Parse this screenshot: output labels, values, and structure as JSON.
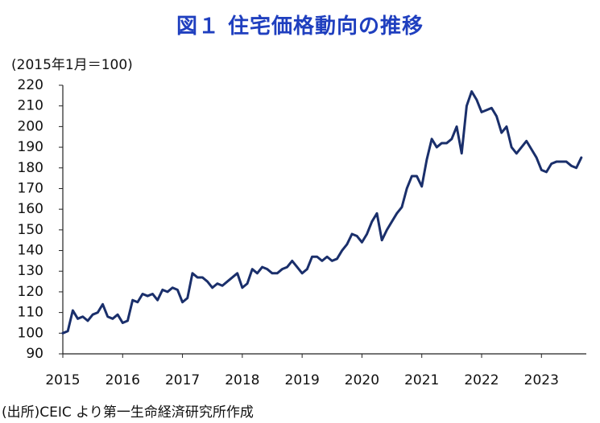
{
  "title": "図１ 住宅価格動向の推移",
  "unit_label": "(2015年1月＝100)",
  "source": "(出所)CEIC より第一生命経済研究所作成",
  "colors": {
    "title": "#1f3fbf",
    "line": "#1a2f6b",
    "axis": "#222222"
  },
  "chart_data": {
    "type": "line",
    "title": "図１ 住宅価格動向の推移",
    "ylabel": "(2015年1月＝100)",
    "xlabel": "",
    "ylim": [
      90,
      220
    ],
    "yticks": [
      90,
      100,
      110,
      120,
      130,
      140,
      150,
      160,
      170,
      180,
      190,
      200,
      210,
      220
    ],
    "xlim": [
      2015.0,
      2023.75
    ],
    "xticks": [
      "2015",
      "2016",
      "2017",
      "2018",
      "2019",
      "2020",
      "2021",
      "2022",
      "2023"
    ],
    "grid": false,
    "series": [
      {
        "name": "住宅価格",
        "start": "2015-01",
        "frequency": "monthly",
        "values": [
          100,
          101,
          111,
          107,
          108,
          106,
          109,
          110,
          114,
          108,
          107,
          109,
          105,
          106,
          116,
          115,
          119,
          118,
          119,
          116,
          121,
          120,
          122,
          121,
          115,
          117,
          129,
          127,
          127,
          125,
          122,
          124,
          123,
          125,
          127,
          129,
          122,
          124,
          131,
          129,
          132,
          131,
          129,
          129,
          131,
          132,
          135,
          132,
          129,
          131,
          137,
          137,
          135,
          137,
          135,
          136,
          140,
          143,
          148,
          147,
          144,
          148,
          154,
          158,
          145,
          150,
          154,
          158,
          161,
          170,
          176,
          176,
          171,
          184,
          194,
          190,
          192,
          192,
          194,
          200,
          187,
          210,
          217,
          213,
          207,
          208,
          209,
          205,
          197,
          200,
          190,
          187,
          190,
          193,
          189,
          185,
          179,
          178,
          182,
          183,
          183,
          183,
          181,
          180,
          185
        ]
      }
    ]
  }
}
